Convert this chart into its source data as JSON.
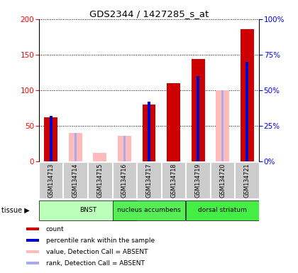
{
  "title": "GDS2344 / 1427285_s_at",
  "samples": [
    "GSM134713",
    "GSM134714",
    "GSM134715",
    "GSM134716",
    "GSM134717",
    "GSM134718",
    "GSM134719",
    "GSM134720",
    "GSM134721"
  ],
  "count_present": [
    62,
    0,
    0,
    0,
    80,
    110,
    144,
    0,
    186
  ],
  "count_absent": [
    0,
    40,
    12,
    36,
    0,
    0,
    0,
    100,
    0
  ],
  "rank_present": [
    32,
    0,
    0,
    0,
    42,
    0,
    60,
    0,
    70
  ],
  "rank_absent": [
    0,
    20,
    0,
    18,
    0,
    0,
    0,
    50,
    0
  ],
  "tissues": [
    {
      "label": "BNST",
      "start": 0,
      "end": 3,
      "color": "#bbffbb"
    },
    {
      "label": "nucleus accumbens",
      "start": 3,
      "end": 5,
      "color": "#44ee44"
    },
    {
      "label": "dorsal striatum",
      "start": 6,
      "end": 8,
      "color": "#44ee44"
    }
  ],
  "tissue_colors": [
    "#bbffbb",
    "#55ee55",
    "#44ee44"
  ],
  "ylim_left": [
    0,
    200
  ],
  "ylim_right": [
    0,
    100
  ],
  "yticks_left": [
    0,
    50,
    100,
    150,
    200
  ],
  "yticks_right": [
    0,
    25,
    50,
    75,
    100
  ],
  "ytick_labels_right": [
    "0%",
    "25%",
    "50%",
    "75%",
    "100%"
  ],
  "color_count_present": "#cc0000",
  "color_count_absent": "#ffbbbb",
  "color_rank_present": "#0000cc",
  "color_rank_absent": "#aaaaee",
  "background_plot": "#ffffff",
  "sample_box_color": "#cccccc"
}
